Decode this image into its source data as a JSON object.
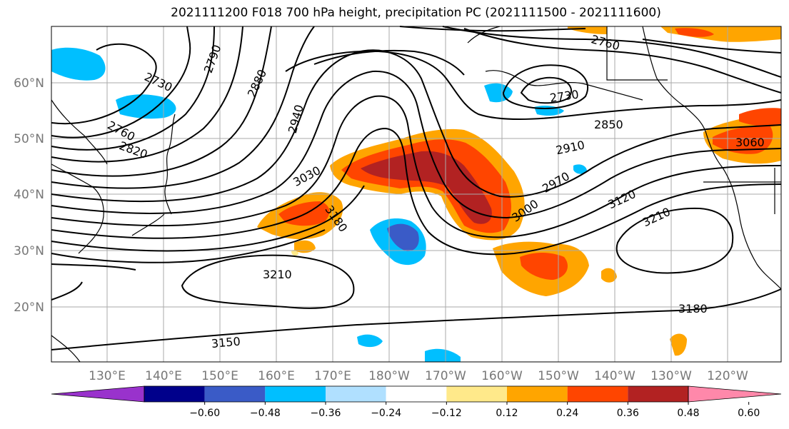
{
  "title": "2021111200 F018 700 hPa height, precipitation PC (2021111500 - 2021111600)",
  "lon_labels": [
    "130°E",
    "140°E",
    "150°E",
    "160°E",
    "170°E",
    "180°W",
    "170°W",
    "160°W",
    "150°W",
    "140°W",
    "130°W",
    "120°W"
  ],
  "lat_labels": [
    "60°N",
    "50°N",
    "40°N",
    "30°N",
    "20°N"
  ],
  "contour_labels": [
    "2790",
    "2730",
    "2880",
    "2940",
    "2760",
    "2820",
    "3030",
    "3180",
    "3210",
    "3150",
    "2760",
    "2730",
    "2850",
    "2910",
    "2970",
    "3000",
    "3060",
    "3120",
    "3210",
    "3180"
  ],
  "colorbar": {
    "ticks": [
      "−0.60",
      "−0.48",
      "−0.36",
      "−0.24",
      "−0.12",
      "0.12",
      "0.24",
      "0.36",
      "0.48",
      "0.60"
    ],
    "colors": [
      "#9932cc",
      "#00008b",
      "#3a5bc7",
      "#00bfff",
      "#b0e0ff",
      "#ffffff",
      "#ffe98a",
      "#ffa500",
      "#ff4500",
      "#b22222",
      "#ff88aa"
    ]
  }
}
